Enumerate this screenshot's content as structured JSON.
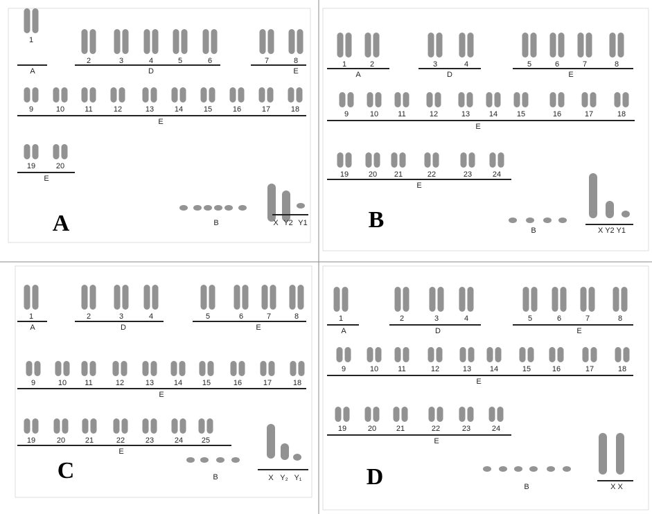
{
  "panels": [
    {
      "letter": "A",
      "chromosome_labels": [
        "1",
        "2",
        "3",
        "4",
        "5",
        "6",
        "7",
        "8",
        "9",
        "10",
        "11",
        "12",
        "13",
        "14",
        "15",
        "16",
        "17",
        "18",
        "19",
        "20"
      ],
      "group_labels": [
        "A",
        "D",
        "E",
        "E",
        "E"
      ],
      "b_label": "B",
      "sex_labels": [
        "X",
        "Y2",
        "Y1"
      ]
    },
    {
      "letter": "B",
      "chromosome_labels": [
        "1",
        "2",
        "3",
        "4",
        "5",
        "6",
        "7",
        "8",
        "9",
        "10",
        "11",
        "12",
        "13",
        "14",
        "15",
        "16",
        "17",
        "18",
        "19",
        "20",
        "21",
        "22",
        "23",
        "24"
      ],
      "group_labels": [
        "A",
        "D",
        "E",
        "E",
        "E"
      ],
      "b_label": "B",
      "sex_labels": [
        "X Y2 Y1"
      ]
    },
    {
      "letter": "C",
      "chromosome_labels": [
        "1",
        "2",
        "3",
        "4",
        "5",
        "6",
        "7",
        "8",
        "9",
        "10",
        "11",
        "12",
        "13",
        "14",
        "15",
        "16",
        "17",
        "18",
        "19",
        "20",
        "21",
        "22",
        "23",
        "24",
        "25"
      ],
      "group_labels": [
        "A",
        "D",
        "E",
        "E",
        "E"
      ],
      "b_label": "B",
      "sex_labels": [
        "X",
        "Y₂",
        "Y₁"
      ]
    },
    {
      "letter": "D",
      "chromosome_labels": [
        "1",
        "2",
        "3",
        "4",
        "5",
        "6",
        "7",
        "8",
        "9",
        "10",
        "11",
        "12",
        "13",
        "14",
        "15",
        "16",
        "17",
        "18",
        "19",
        "20",
        "21",
        "22",
        "23",
        "24"
      ],
      "group_labels": [
        "A",
        "D",
        "E",
        "E",
        "E"
      ],
      "b_label": "B",
      "sex_labels": [
        "X X"
      ]
    }
  ]
}
